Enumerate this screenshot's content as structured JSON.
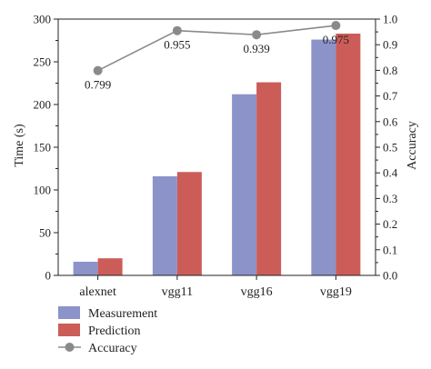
{
  "chart_data": {
    "type": "bar",
    "categories": [
      "alexnet",
      "vgg11",
      "vgg16",
      "vgg19"
    ],
    "series": [
      {
        "name": "Measurement",
        "values": [
          16,
          116,
          212,
          276
        ],
        "color": "#8b93c9",
        "axis": "left"
      },
      {
        "name": "Prediction",
        "values": [
          20,
          121,
          226,
          283
        ],
        "color": "#cc5c58",
        "axis": "left"
      }
    ],
    "line_series": {
      "name": "Accuracy",
      "values": [
        0.799,
        0.955,
        0.939,
        0.975
      ],
      "labels": [
        "0.799",
        "0.955",
        "0.939",
        "0.975"
      ],
      "color": "#8a8a8a",
      "axis": "right"
    },
    "ylabel": "Time (s)",
    "ylabel_right": "Accuracy",
    "ylim": [
      0,
      300
    ],
    "ylim_right": [
      0,
      1.0
    ],
    "yticks": [
      "0",
      "50",
      "100",
      "150",
      "200",
      "250",
      "300"
    ],
    "yticks_right": [
      "0.0",
      "0.1",
      "0.2",
      "0.3",
      "0.4",
      "0.5",
      "0.6",
      "0.7",
      "0.8",
      "0.9",
      "1.0"
    ],
    "grid": false,
    "legend_position": "bottom-left"
  },
  "legend": {
    "items": [
      {
        "name": "Measurement",
        "label": "Measurement",
        "kind": "bar",
        "color": "#8b93c9"
      },
      {
        "name": "Prediction",
        "label": "Prediction",
        "kind": "bar",
        "color": "#cc5c58"
      },
      {
        "name": "Accuracy",
        "label": "Accuracy",
        "kind": "line",
        "color": "#8a8a8a"
      }
    ]
  }
}
